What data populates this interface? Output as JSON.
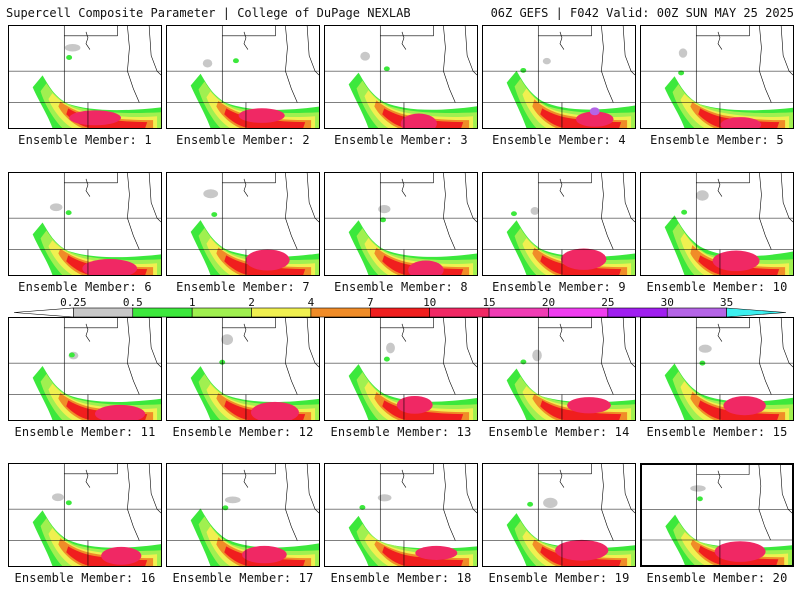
{
  "header": {
    "product_title": "Supercell Composite Parameter | College of DuPage NEXLAB",
    "run_info": "06Z GEFS | F042 Valid: 00Z SUN MAY 25 2025"
  },
  "colorbar": {
    "ticks": [
      "0.25",
      "0.5",
      "1",
      "2",
      "4",
      "7",
      "10",
      "15",
      "20",
      "25",
      "30",
      "35"
    ],
    "colors": [
      "#ffffff",
      "#c8c8c8",
      "#3ce83c",
      "#a0f050",
      "#f0f050",
      "#f08c28",
      "#f01e1e",
      "#f02864",
      "#f03cb4",
      "#f03cf0",
      "#a01ef0",
      "#b464e6",
      "#3cf0f0"
    ]
  },
  "map": {
    "colors": {
      "line": "#000000",
      "border": "#888888"
    }
  },
  "members": [
    {
      "label": "Ensemble Member: 1"
    },
    {
      "label": "Ensemble Member: 2"
    },
    {
      "label": "Ensemble Member: 3"
    },
    {
      "label": "Ensemble Member: 4"
    },
    {
      "label": "Ensemble Member: 5"
    },
    {
      "label": "Ensemble Member: 6"
    },
    {
      "label": "Ensemble Member: 7"
    },
    {
      "label": "Ensemble Member: 8"
    },
    {
      "label": "Ensemble Member: 9"
    },
    {
      "label": "Ensemble Member: 10"
    },
    {
      "label": "Ensemble Member: 11"
    },
    {
      "label": "Ensemble Member: 12"
    },
    {
      "label": "Ensemble Member: 13"
    },
    {
      "label": "Ensemble Member: 14"
    },
    {
      "label": "Ensemble Member: 15"
    },
    {
      "label": "Ensemble Member: 16"
    },
    {
      "label": "Ensemble Member: 17"
    },
    {
      "label": "Ensemble Member: 18"
    },
    {
      "label": "Ensemble Member: 19"
    },
    {
      "label": "Ensemble Member: 20"
    }
  ]
}
